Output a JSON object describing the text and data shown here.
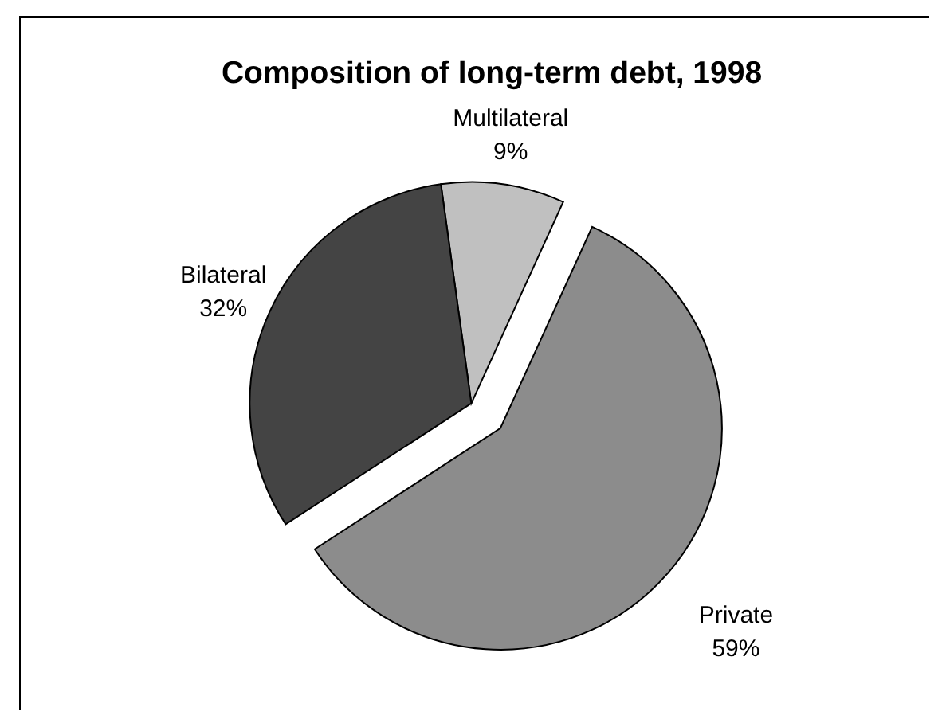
{
  "chart_data": {
    "type": "pie",
    "title": "Composition of long-term debt, 1998",
    "categories": [
      "Multilateral",
      "Private",
      "Bilateral"
    ],
    "values": [
      9,
      59,
      32
    ],
    "colors": [
      "#c0c0c0",
      "#8c8c8c",
      "#444444"
    ],
    "value_labels": [
      "9%",
      "59%",
      "32%"
    ]
  }
}
